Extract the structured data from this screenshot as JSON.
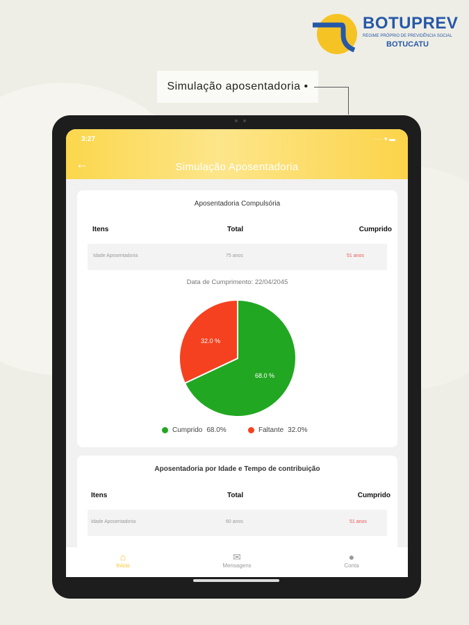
{
  "brand": {
    "name": "BOTUPREV",
    "subtitle": "REGIME PRÓPRIO DE PREVIDÊNCIA SOCIAL",
    "city": "BOTUCATU"
  },
  "callout": "Simulação aposentadoria",
  "status": {
    "time": "3:27",
    "icons": "···· ▾ ▬"
  },
  "header": {
    "back": "←",
    "title": "Simulação Aposentadoria"
  },
  "card1": {
    "title": "Aposentadoria Compulsória",
    "headers": [
      "Itens",
      "Total",
      "Cumprido"
    ],
    "row": {
      "item": "Idade Aposentadoria",
      "total": "75 anos",
      "cumprido": "51 anos"
    },
    "date": "Data de Cumprimento: 22/04/2045"
  },
  "chart_data": {
    "type": "pie",
    "slices": [
      {
        "name": "Cumprido",
        "value": 68.0,
        "label": "68.0 %",
        "color": "#22a722"
      },
      {
        "name": "Faltante",
        "value": 32.0,
        "label": "32.0 %",
        "color": "#f5411f"
      }
    ],
    "legend": [
      {
        "label": "Cumprido",
        "value": "68.0%"
      },
      {
        "label": "Faltante",
        "value": "32.0%"
      }
    ]
  },
  "card2": {
    "title": "Aposentadoria por Idade e Tempo de contribuição",
    "headers": [
      "Itens",
      "Total",
      "Cumprido"
    ],
    "row": {
      "item": "Idade Aposentadoria",
      "total": "60 anos",
      "cumprido": "51 anos"
    }
  },
  "nav": [
    {
      "icon": "home-icon",
      "label": "Início",
      "active": true
    },
    {
      "icon": "mail-icon",
      "label": "Mensagens"
    },
    {
      "icon": "person-icon",
      "label": "Conta"
    }
  ]
}
